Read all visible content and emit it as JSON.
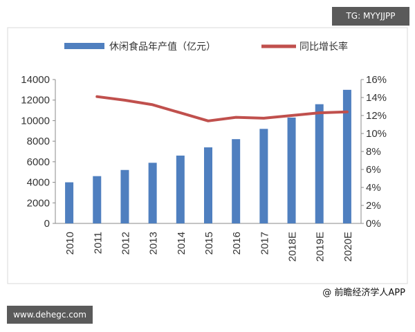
{
  "watermark_tag": "TG: MYYJJPP",
  "site_label": "www.dehegc.com",
  "credit": "@ 前瞻经济学人APP",
  "chart_data": {
    "type": "bar+line",
    "title": "",
    "categories": [
      "2010",
      "2011",
      "2012",
      "2013",
      "2014",
      "2015",
      "2016",
      "2017",
      "2018E",
      "2019E",
      "2020E"
    ],
    "series": [
      {
        "name": "休闲食品年产值（亿元）",
        "type": "bar",
        "axis": "left",
        "color": "#4f7fbf",
        "values": [
          4000,
          4600,
          5200,
          5900,
          6600,
          7400,
          8200,
          9200,
          10300,
          11600,
          13000
        ]
      },
      {
        "name": "同比增长率",
        "type": "line",
        "axis": "right",
        "color": "#c0504d",
        "values": [
          null,
          14.1,
          13.7,
          13.2,
          12.3,
          11.4,
          11.8,
          11.7,
          12.0,
          12.3,
          12.4
        ]
      }
    ],
    "y_left": {
      "min": 0,
      "max": 14000,
      "step": 2000,
      "ticks": [
        "0",
        "2000",
        "4000",
        "6000",
        "8000",
        "10000",
        "12000",
        "14000"
      ]
    },
    "y_right": {
      "min": 0,
      "max": 16,
      "step": 2,
      "ticks": [
        "0%",
        "2%",
        "4%",
        "6%",
        "8%",
        "10%",
        "12%",
        "14%",
        "16%"
      ]
    },
    "legend_position": "top",
    "grid": false
  }
}
